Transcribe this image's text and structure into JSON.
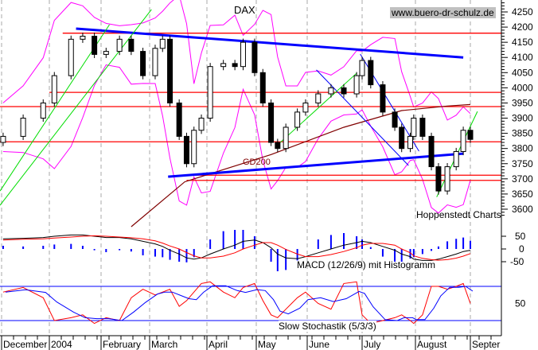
{
  "chart_data": {
    "type": "candlestick",
    "title": "DAX",
    "source_label": "www.buero-dr-schulz.de",
    "credit": "Hoppenstedt Charts",
    "price_axis": {
      "range": [
        3580,
        4290
      ],
      "ticks": [
        4250,
        4200,
        4150,
        4100,
        4050,
        4000,
        3950,
        3900,
        3850,
        3800,
        3750,
        3700,
        3650,
        3600
      ]
    },
    "x_axis": {
      "labels": [
        "December",
        "2004",
        "February",
        "March",
        "April",
        "May",
        "June",
        "July",
        "August",
        "Septer"
      ],
      "months": [
        "2003-12-01",
        "2004-01-01",
        "2004-02-01",
        "2004-03-01",
        "2004-04-01",
        "2004-05-01",
        "2004-06-01",
        "2004-07-01",
        "2004-08-01",
        "2004-09-01"
      ]
    },
    "grid": "vertical dashed at month starts",
    "dates": [
      "2003-12-02",
      "2003-12-15",
      "2003-12-28",
      "2004-01-04",
      "2004-01-14",
      "2004-01-21",
      "2004-01-28",
      "2004-02-04",
      "2004-02-12",
      "2004-02-19",
      "2004-02-26",
      "2004-03-04",
      "2004-03-08",
      "2004-03-12",
      "2004-03-17",
      "2004-03-21",
      "2004-03-25",
      "2004-03-29",
      "2004-04-03",
      "2004-04-11",
      "2004-04-18",
      "2004-04-23",
      "2004-04-30",
      "2004-05-05",
      "2004-05-10",
      "2004-05-14",
      "2004-05-19",
      "2004-05-26",
      "2004-05-31",
      "2004-06-07",
      "2004-06-14",
      "2004-06-21",
      "2004-06-28",
      "2004-07-01",
      "2004-07-06",
      "2004-07-13",
      "2004-07-20",
      "2004-07-24",
      "2004-07-29",
      "2004-07-31",
      "2004-08-05",
      "2004-08-10",
      "2004-08-14",
      "2004-08-19",
      "2004-08-24",
      "2004-08-28",
      "2004-09-01"
    ],
    "close": [
      3840,
      3900,
      3950,
      4040,
      4160,
      4170,
      4110,
      4120,
      4160,
      4120,
      4040,
      4130,
      4160,
      3950,
      3840,
      3750,
      3860,
      3900,
      4070,
      4080,
      4070,
      4150,
      4050,
      3950,
      3820,
      3800,
      3870,
      3920,
      3950,
      3980,
      4000,
      3980,
      4040,
      4090,
      4010,
      3920,
      3870,
      3800,
      3840,
      3900,
      3840,
      3740,
      3660,
      3740,
      3790,
      3860,
      3830
    ],
    "gd200": {
      "label": "GD200",
      "color": "#800000",
      "points": [
        [
          "2004-02-19",
          3540
        ],
        [
          "2004-03-20",
          3690
        ],
        [
          "2004-05-10",
          3780
        ],
        [
          "2004-06-21",
          3870
        ],
        [
          "2004-07-24",
          3925
        ],
        [
          "2004-08-19",
          3940
        ],
        [
          "2004-09-01",
          3945
        ]
      ]
    },
    "horizontal_levels": [
      {
        "value": 4180,
        "from": "2004-01-09"
      },
      {
        "value": 3985,
        "from": "2004-01-01"
      },
      {
        "value": 3938,
        "from": "2003-11-30"
      },
      {
        "value": 3822,
        "from": "2003-11-30"
      },
      {
        "value": 3712,
        "from": "2004-03-21"
      },
      {
        "value": 3695,
        "from": "2004-03-21"
      }
    ],
    "level_color": "#ff0000",
    "trendlines": [
      {
        "color": "#0000ff",
        "width": "thick",
        "points": [
          [
            "2004-01-17",
            4195
          ],
          [
            "2004-08-28",
            4100
          ]
        ]
      },
      {
        "color": "#0000ff",
        "width": "thick",
        "points": [
          [
            "2004-03-11",
            3707
          ],
          [
            "2004-08-28",
            3783
          ]
        ]
      },
      {
        "color": "#0000ff",
        "width": "thin",
        "points": [
          [
            "2004-06-06",
            4059
          ],
          [
            "2004-07-28",
            3744
          ]
        ]
      },
      {
        "color": "#0000ff",
        "width": "thin",
        "points": [
          [
            "2004-06-30",
            4111
          ],
          [
            "2004-08-03",
            3791
          ]
        ]
      },
      {
        "color": "#00dd00",
        "width": "thin",
        "points": [
          [
            "2003-11-30",
            3613
          ],
          [
            "2004-03-02",
            4258
          ]
        ]
      },
      {
        "color": "#00dd00",
        "width": "thin",
        "points": [
          [
            "2003-11-30",
            3660
          ],
          [
            "2004-02-06",
            4208
          ]
        ]
      },
      {
        "color": "#00dd00",
        "width": "thin",
        "points": [
          [
            "2004-05-15",
            3817
          ],
          [
            "2004-06-28",
            4048
          ]
        ]
      },
      {
        "color": "#00dd00",
        "width": "thin",
        "points": [
          [
            "2004-08-13",
            3640
          ],
          [
            "2004-09-05",
            3922
          ]
        ]
      }
    ],
    "bollinger_color": "#ff00ff",
    "macd": {
      "label": "MACD (12/26/9) mit Histogramm",
      "ticks": [
        50,
        0,
        -50
      ],
      "macd": [
        40,
        42,
        45,
        50,
        55,
        55,
        50,
        45,
        45,
        40,
        30,
        20,
        10,
        -5,
        -20,
        -35,
        -40,
        -35,
        -20,
        0,
        15,
        30,
        35,
        25,
        5,
        -20,
        -35,
        -38,
        -30,
        -15,
        0,
        15,
        25,
        30,
        25,
        10,
        -5,
        -20,
        -30,
        -40,
        -45,
        -45,
        -40,
        -30,
        -20,
        -10,
        -5
      ],
      "signal": [
        35,
        38,
        40,
        43,
        47,
        50,
        52,
        50,
        47,
        44,
        40,
        32,
        23,
        12,
        0,
        -14,
        -27,
        -35,
        -35,
        -28,
        -15,
        0,
        15,
        25,
        25,
        15,
        -2,
        -20,
        -30,
        -30,
        -22,
        -10,
        5,
        15,
        22,
        22,
        15,
        0,
        -15,
        -27,
        -37,
        -42,
        -44,
        -42,
        -36,
        -28,
        -18
      ]
    },
    "stochastic": {
      "label": "Slow Stochastik (5/3/3)",
      "ticks": [
        50
      ],
      "bands": [
        80,
        20
      ],
      "k": [
        70,
        78,
        60,
        20,
        25,
        30,
        15,
        25,
        20,
        60,
        75,
        65,
        70,
        75,
        45,
        55,
        70,
        85,
        88,
        70,
        60,
        78,
        85,
        55,
        30,
        25,
        40,
        60,
        70,
        50,
        40,
        85,
        88,
        30,
        15,
        20,
        25,
        30,
        20,
        15,
        30,
        80,
        80,
        75,
        80,
        85,
        50
      ]
    }
  }
}
